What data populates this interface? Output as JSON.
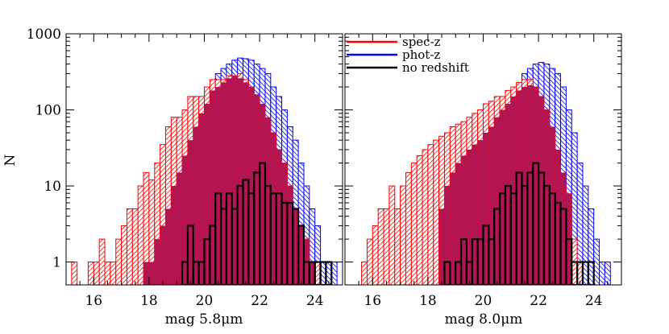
{
  "chart_data": [
    {
      "type": "histogram",
      "xlabel": "mag 5.8μm",
      "ylabel": "N",
      "yscale": "log",
      "xlim": [
        15,
        25
      ],
      "ylim": [
        0.5,
        1000
      ],
      "bin_width": 0.2,
      "x_start": 15.2,
      "xticks": [
        "16",
        "18",
        "20",
        "22",
        "24"
      ],
      "yticks": [
        "1",
        "10",
        "100",
        "1000"
      ],
      "series": [
        {
          "name": "spec-z",
          "color": "#ff0000",
          "fill": "hatch",
          "values": [
            1,
            0,
            0,
            1,
            1,
            2,
            1,
            1,
            2,
            3,
            5,
            5,
            10,
            15,
            12,
            20,
            35,
            60,
            80,
            80,
            100,
            150,
            150,
            150,
            200,
            250,
            250,
            250,
            280,
            280,
            300,
            250,
            200,
            150,
            100,
            75,
            50,
            30,
            20,
            10,
            5,
            3,
            2,
            1,
            1,
            0,
            0,
            0,
            0
          ]
        },
        {
          "name": "phot-z",
          "color": "#0000ff",
          "fill": "hatch",
          "values": [
            0,
            0,
            0,
            1,
            0,
            0,
            0,
            0,
            0,
            0,
            0,
            0,
            0,
            0,
            0,
            0,
            0,
            0,
            0,
            0,
            0,
            0,
            0,
            0,
            0,
            0,
            300,
            350,
            400,
            450,
            480,
            470,
            450,
            400,
            350,
            300,
            200,
            150,
            100,
            60,
            40,
            20,
            10,
            5,
            3,
            1,
            1,
            1,
            0
          ]
        },
        {
          "name": "overlap",
          "color": "#b4144f",
          "fill": "solid",
          "values": [
            0,
            0,
            0,
            0,
            0,
            0,
            0,
            0,
            0,
            0,
            0,
            0,
            0,
            1,
            1,
            2,
            3,
            5,
            10,
            15,
            25,
            40,
            60,
            90,
            120,
            180,
            200,
            230,
            260,
            280,
            260,
            230,
            200,
            160,
            120,
            80,
            50,
            30,
            20,
            10,
            5,
            3,
            2,
            1,
            0,
            0,
            0,
            0,
            0
          ]
        },
        {
          "name": "no redshift",
          "color": "#000000",
          "fill": "none",
          "values": [
            0,
            0,
            0,
            0,
            0,
            0,
            0,
            0,
            0,
            0,
            0,
            0,
            0,
            0,
            0,
            0,
            0,
            0,
            0,
            0,
            1,
            3,
            1,
            1,
            2,
            3,
            8,
            5,
            8,
            5,
            10,
            12,
            8,
            15,
            20,
            10,
            8,
            8,
            6,
            6,
            5,
            3,
            1,
            1,
            1,
            1,
            1,
            0,
            0
          ]
        }
      ]
    },
    {
      "type": "histogram",
      "xlabel": "mag 8.0μm",
      "ylabel": "",
      "yscale": "log",
      "xlim": [
        15,
        25
      ],
      "ylim": [
        0.5,
        1000
      ],
      "bin_width": 0.2,
      "x_start": 15.2,
      "xticks": [
        "16",
        "18",
        "20",
        "22",
        "24"
      ],
      "yticks": [
        "1",
        "10",
        "100",
        "1000"
      ],
      "legend": {
        "position": "top-left",
        "entries": [
          "spec-z",
          "phot-z",
          "no redshift"
        ]
      },
      "series": [
        {
          "name": "spec-z",
          "color": "#ff0000",
          "fill": "hatch",
          "values": [
            0,
            0,
            1,
            2,
            3,
            5,
            5,
            10,
            5,
            10,
            15,
            20,
            25,
            30,
            35,
            40,
            45,
            50,
            60,
            65,
            70,
            80,
            90,
            100,
            120,
            130,
            150,
            150,
            180,
            200,
            230,
            250,
            250,
            200,
            150,
            100,
            50,
            20,
            10,
            5,
            2,
            1,
            0,
            0,
            0,
            0,
            0,
            0,
            0
          ]
        },
        {
          "name": "phot-z",
          "color": "#0000ff",
          "fill": "hatch",
          "values": [
            0,
            0,
            0,
            0,
            0,
            0,
            0,
            0,
            0,
            0,
            0,
            0,
            0,
            0,
            0,
            0,
            0,
            0,
            0,
            0,
            0,
            0,
            0,
            0,
            0,
            0,
            0,
            0,
            0,
            0,
            0,
            300,
            350,
            400,
            420,
            400,
            350,
            300,
            200,
            100,
            50,
            20,
            10,
            5,
            2,
            1,
            1,
            0,
            0
          ]
        },
        {
          "name": "overlap",
          "color": "#b4144f",
          "fill": "solid",
          "values": [
            0,
            0,
            0,
            0,
            0,
            0,
            0,
            0,
            0,
            0,
            0,
            0,
            0,
            0,
            0,
            0,
            5,
            10,
            15,
            20,
            25,
            30,
            35,
            40,
            50,
            60,
            80,
            100,
            120,
            150,
            180,
            200,
            210,
            200,
            150,
            100,
            60,
            30,
            15,
            8,
            0,
            0,
            0,
            0,
            0,
            0,
            0,
            0,
            0
          ]
        },
        {
          "name": "no redshift",
          "color": "#000000",
          "fill": "none",
          "values": [
            0,
            0,
            0,
            0,
            0,
            0,
            0,
            0,
            0,
            0,
            0,
            0,
            0,
            0,
            0,
            0,
            0,
            1,
            0,
            1,
            2,
            1,
            2,
            2,
            3,
            2,
            5,
            8,
            10,
            8,
            15,
            10,
            15,
            20,
            15,
            10,
            8,
            6,
            5,
            2,
            1,
            1,
            1,
            1,
            0,
            0,
            0,
            0,
            0
          ]
        }
      ]
    }
  ]
}
